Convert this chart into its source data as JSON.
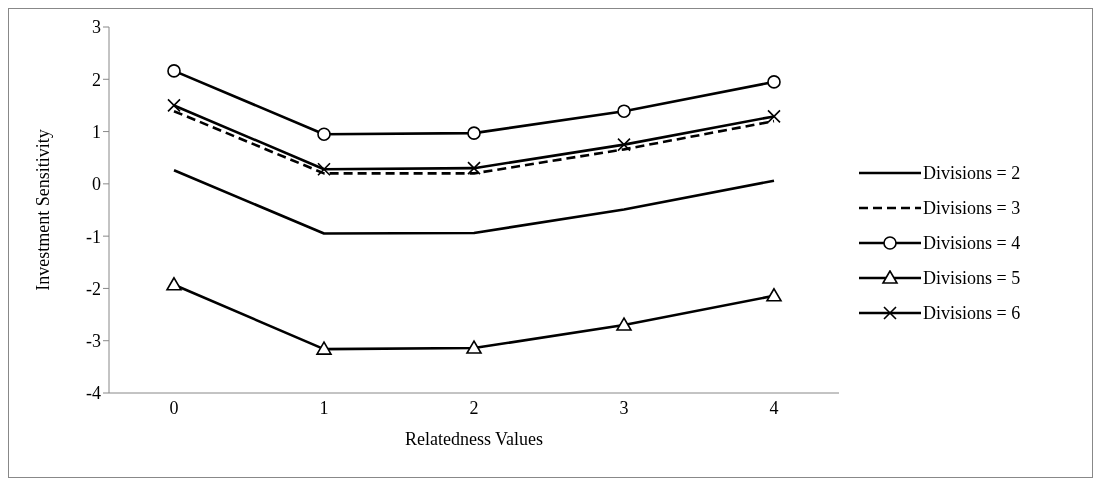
{
  "chart_data": {
    "type": "line",
    "xlabel": "Relatedness Values",
    "ylabel": "Investment Sensitivity",
    "categories": [
      "0",
      "1",
      "2",
      "3",
      "4"
    ],
    "series": [
      {
        "name": "Divisions = 2",
        "color": "#000000",
        "marker": "none",
        "line_style": "solid",
        "values": [
          0.26,
          -0.95,
          -0.94,
          -0.49,
          0.06
        ]
      },
      {
        "name": "Divisions = 3",
        "color": "#000000",
        "marker": "none",
        "line_style": "dashed",
        "values": [
          1.39,
          0.2,
          0.2,
          0.66,
          1.2
        ]
      },
      {
        "name": "Divisions = 4",
        "color": "#000000",
        "marker": "circle",
        "line_style": "solid",
        "values": [
          2.16,
          0.95,
          0.97,
          1.39,
          1.95
        ]
      },
      {
        "name": "Divisions = 5",
        "color": "#000000",
        "marker": "triangle",
        "line_style": "solid",
        "values": [
          -1.93,
          -3.16,
          -3.14,
          -2.7,
          -2.14
        ]
      },
      {
        "name": "Divisions = 6",
        "color": "#000000",
        "marker": "cross",
        "line_style": "solid",
        "values": [
          1.5,
          0.28,
          0.3,
          0.75,
          1.29
        ]
      }
    ],
    "ylim": [
      -4,
      3
    ],
    "yticks": [
      -4,
      -3,
      -2,
      -1,
      0,
      1,
      2,
      3
    ],
    "grid": false,
    "legend": "right"
  }
}
